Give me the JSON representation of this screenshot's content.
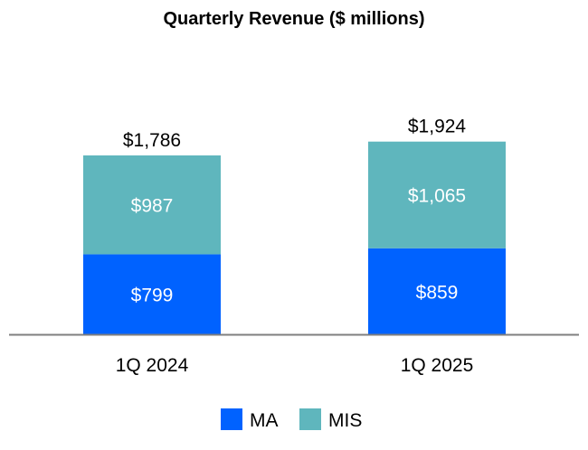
{
  "chart_data": {
    "type": "bar",
    "stacked": true,
    "title": "Quarterly Revenue ($ millions)",
    "xlabel": "",
    "ylabel": "",
    "categories": [
      "1Q 2024",
      "1Q 2025"
    ],
    "series": [
      {
        "name": "MA",
        "values": [
          799,
          859
        ],
        "labels": [
          "$799",
          "$859"
        ],
        "color": "#0062FF"
      },
      {
        "name": "MIS",
        "values": [
          987,
          1065
        ],
        "labels": [
          "$987",
          "$1,065"
        ],
        "color": "#5FB6BD"
      }
    ],
    "totals": [
      1786,
      1924
    ],
    "total_labels": [
      "$1,786",
      "$1,924"
    ],
    "grid": false,
    "legend": "bottom"
  }
}
